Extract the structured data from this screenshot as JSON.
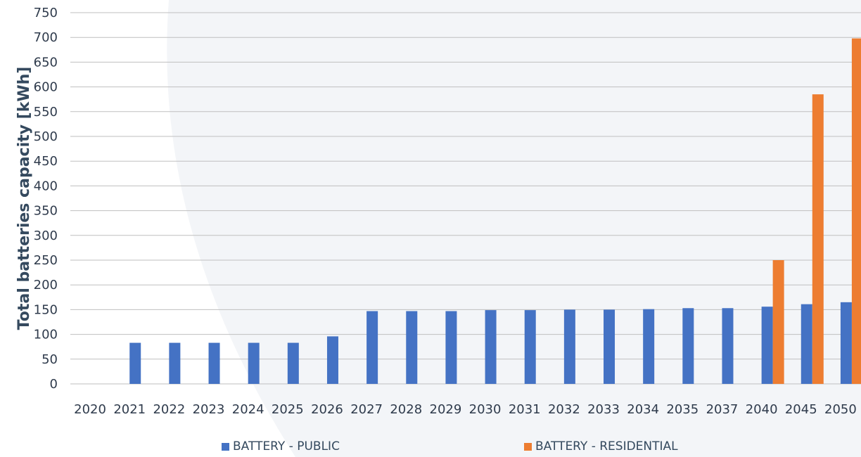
{
  "chart_data": {
    "type": "bar",
    "title": "",
    "xlabel": "",
    "ylabel": "Total batteries capacity [kWh]",
    "ylim": [
      0,
      750
    ],
    "yticks": [
      0,
      50,
      100,
      150,
      200,
      250,
      300,
      350,
      400,
      450,
      500,
      550,
      600,
      650,
      700,
      750
    ],
    "grid": true,
    "legend_position": "bottom",
    "categories": [
      "2020",
      "2021",
      "2022",
      "2023",
      "2024",
      "2025",
      "2026",
      "2027",
      "2028",
      "2029",
      "2030",
      "2031",
      "2032",
      "2033",
      "2034",
      "2035",
      "2037",
      "2040",
      "2045",
      "2050"
    ],
    "series": [
      {
        "name": "BATTERY - PUBLIC",
        "color": "#4472C4",
        "values": [
          0,
          83,
          83,
          83,
          83,
          83,
          96,
          147,
          147,
          147,
          149,
          149,
          150,
          150,
          151,
          153,
          153,
          156,
          161,
          165
        ]
      },
      {
        "name": "BATTERY - RESIDENTIAL",
        "color": "#ED7D31",
        "values": [
          0,
          0,
          0,
          0,
          0,
          0,
          0,
          0,
          0,
          0,
          0,
          0,
          0,
          0,
          0,
          0,
          0,
          250,
          585,
          698
        ]
      }
    ]
  }
}
